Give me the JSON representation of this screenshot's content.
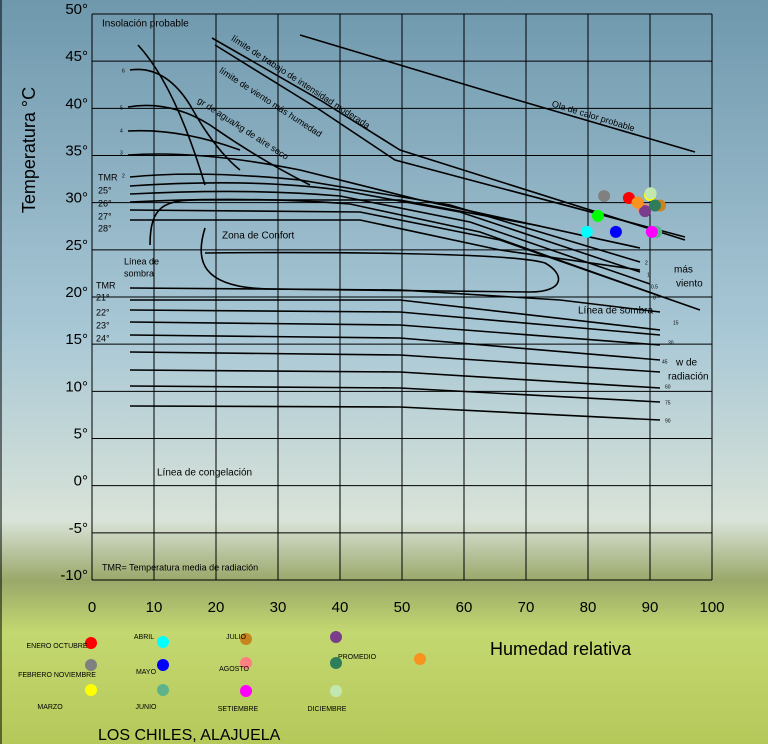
{
  "chart_data": {
    "type": "scatter",
    "subtitle": "LOS CHILES, ALAJUELA",
    "x_label": "Humedad relativa",
    "y_label": "Temperatura °C",
    "xlim": [
      0,
      100
    ],
    "ylim": [
      -10,
      50
    ],
    "xticks": [
      0,
      10,
      20,
      30,
      40,
      50,
      60,
      70,
      80,
      90,
      100
    ],
    "yticks": [
      {
        "value": -10,
        "label": "-10°"
      },
      {
        "value": -5,
        "label": "-5°"
      },
      {
        "value": 0,
        "label": "0°"
      },
      {
        "value": 5,
        "label": "5°"
      },
      {
        "value": 10,
        "label": "10°"
      },
      {
        "value": 15,
        "label": "15°"
      },
      {
        "value": 20,
        "label": "20°"
      },
      {
        "value": 25,
        "label": "25°"
      },
      {
        "value": 30,
        "label": "30°"
      },
      {
        "value": 35,
        "label": "35°"
      },
      {
        "value": 40,
        "label": "40°"
      },
      {
        "value": 45,
        "label": "45°"
      },
      {
        "value": 50,
        "label": "50°"
      }
    ],
    "grid": true,
    "series": [
      {
        "name": "ENERO OCTUBRE",
        "color": "#ff0000",
        "x": [
          86.6
        ],
        "values": [
          30.5
        ]
      },
      {
        "name": "FEBRERO NOVIEMBRE",
        "color": "#808080",
        "x": [
          82.6
        ],
        "values": [
          30.7
        ]
      },
      {
        "name": "MARZO",
        "color": "#ffff00",
        "x": [
          90.0
        ],
        "values": [
          30.8
        ]
      },
      {
        "name": "ABRIL",
        "color": "#00ffff",
        "x": [
          79.8
        ],
        "values": [
          26.9
        ]
      },
      {
        "name": "MAYO",
        "color": "#0000ff",
        "x": [
          84.5
        ],
        "values": [
          26.9
        ]
      },
      {
        "name": "JUNIO",
        "color": "#5fb38a",
        "x": [
          91.0
        ],
        "values": [
          26.9
        ]
      },
      {
        "name": "JULIO",
        "color": "#c8841e",
        "x": [
          91.6
        ],
        "values": [
          29.7
        ]
      },
      {
        "name": "AGOSTO",
        "color": "#ff8080",
        "x": [
          89.0
        ],
        "values": [
          29.3
        ]
      },
      {
        "name": "SETIEMBRE",
        "color": "#ff00ff",
        "x": [
          90.3
        ],
        "values": [
          26.9
        ]
      },
      {
        "name": null,
        "color": "#7a3d8c",
        "x": [
          89.2
        ],
        "values": [
          29.1
        ]
      },
      {
        "name": "PROMEDIO",
        "color": "#f7931e",
        "x": [
          88.0
        ],
        "values": [
          30.0
        ]
      },
      {
        "name": null,
        "color": "#2e7d5b",
        "x": [
          90.8
        ],
        "values": [
          29.7
        ]
      },
      {
        "name": "DICIEMBRE",
        "color": "#c2e8b0",
        "x": [
          90.1
        ],
        "values": [
          31.0
        ]
      },
      {
        "name": null,
        "color": "#00ff00",
        "x": [
          81.6
        ],
        "values": [
          28.6
        ]
      }
    ],
    "annotations": [
      "Insolación probable",
      "límite de trabajo de intensidad moderada",
      "límite de viento más humedad",
      "gr de agua/kg de aire seco",
      "Ola de calor probable",
      "TMR",
      "25°",
      "26°",
      "27°",
      "28°",
      "Zona de Confort",
      "Línea de",
      "sombra",
      "TMR",
      "21°",
      "22°",
      "23°",
      "24°",
      "Línea de sombra",
      "más",
      "viento",
      "w de",
      "radiación",
      "Línea de congelación",
      "TMR= Temperatura  media de radiación",
      "6",
      "5",
      "4",
      "3",
      "2",
      "2",
      "1",
      "0.5",
      "0",
      "15",
      "30",
      "45",
      "60",
      "75",
      "90"
    ]
  }
}
